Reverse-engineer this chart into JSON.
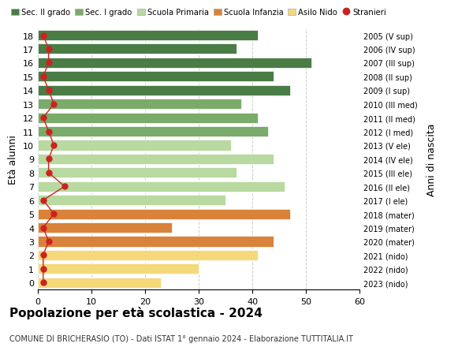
{
  "ages": [
    18,
    17,
    16,
    15,
    14,
    13,
    12,
    11,
    10,
    9,
    8,
    7,
    6,
    5,
    4,
    3,
    2,
    1,
    0
  ],
  "years": [
    "2005 (V sup)",
    "2006 (IV sup)",
    "2007 (III sup)",
    "2008 (II sup)",
    "2009 (I sup)",
    "2010 (III med)",
    "2011 (II med)",
    "2012 (I med)",
    "2013 (V ele)",
    "2014 (IV ele)",
    "2015 (III ele)",
    "2016 (II ele)",
    "2017 (I ele)",
    "2018 (mater)",
    "2019 (mater)",
    "2020 (mater)",
    "2021 (nido)",
    "2022 (nido)",
    "2023 (nido)"
  ],
  "values": [
    41,
    37,
    51,
    44,
    47,
    38,
    41,
    43,
    36,
    44,
    37,
    46,
    35,
    47,
    25,
    44,
    41,
    30,
    23
  ],
  "stranieri": [
    1,
    2,
    2,
    1,
    2,
    3,
    1,
    2,
    3,
    2,
    2,
    5,
    1,
    3,
    1,
    2,
    1,
    1,
    1
  ],
  "bar_colors": [
    "#4a7c45",
    "#4a7c45",
    "#4a7c45",
    "#4a7c45",
    "#4a7c45",
    "#7aab6a",
    "#7aab6a",
    "#7aab6a",
    "#b8d9a0",
    "#b8d9a0",
    "#b8d9a0",
    "#b8d9a0",
    "#b8d9a0",
    "#d9823a",
    "#d9823a",
    "#d9823a",
    "#f5d87a",
    "#f5d87a",
    "#f5d87a"
  ],
  "legend_labels": [
    "Sec. II grado",
    "Sec. I grado",
    "Scuola Primaria",
    "Scuola Infanzia",
    "Asilo Nido",
    "Stranieri"
  ],
  "legend_colors": [
    "#4a7c45",
    "#7aab6a",
    "#b8d9a0",
    "#d9823a",
    "#f5d87a",
    "#cc2222"
  ],
  "stranieri_color": "#cc2222",
  "ylabel": "Età alunni",
  "right_ylabel": "Anni di nascita",
  "title": "Popolazione per età scolastica - 2024",
  "subtitle": "COMUNE DI BRICHERASIO (TO) - Dati ISTAT 1° gennaio 2024 - Elaborazione TUTTITALIA.IT",
  "xlim": [
    0,
    60
  ],
  "xticks": [
    0,
    10,
    20,
    30,
    40,
    50,
    60
  ],
  "background_color": "#ffffff",
  "grid_color": "#cccccc",
  "bar_height": 0.75
}
